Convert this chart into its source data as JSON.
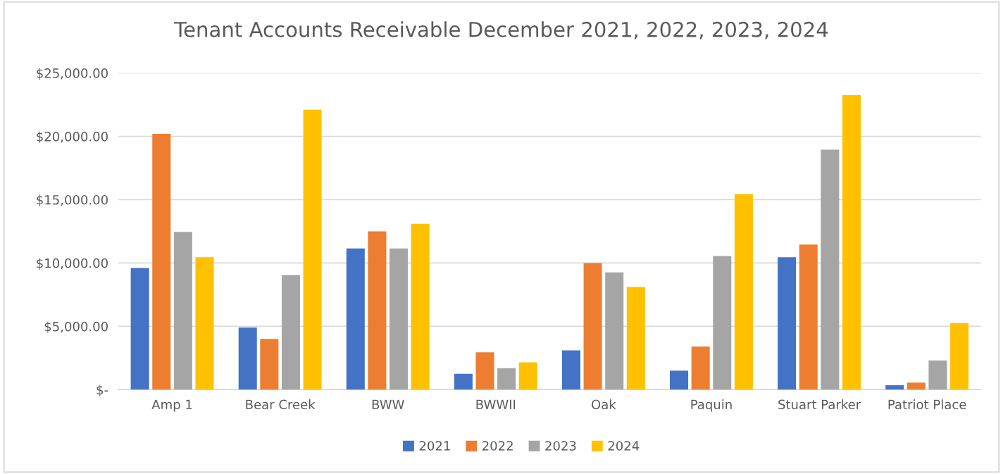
{
  "chart_data": {
    "type": "bar",
    "title": "Tenant Accounts Receivable December 2021, 2022, 2023, 2024",
    "categories": [
      "Amp 1",
      "Bear Creek",
      "BWW",
      "BWWII",
      "Oak",
      "Paquin",
      "Stuart Parker",
      "Patriot Place"
    ],
    "series": [
      {
        "name": "2021",
        "color": "#4472c4",
        "values": [
          9600,
          4900,
          11150,
          1250,
          3100,
          1500,
          10450,
          350
        ]
      },
      {
        "name": "2022",
        "color": "#ed7d31",
        "values": [
          20200,
          4000,
          12500,
          2950,
          10000,
          3400,
          11450,
          550
        ]
      },
      {
        "name": "2023",
        "color": "#a5a5a5",
        "values": [
          12450,
          9050,
          11150,
          1700,
          9250,
          10550,
          18950,
          2300
        ]
      },
      {
        "name": "2024",
        "color": "#ffc000",
        "values": [
          10450,
          22100,
          13100,
          2150,
          8100,
          15450,
          23250,
          5250
        ]
      }
    ],
    "ylim": [
      0,
      25000
    ],
    "yticks": [
      {
        "value": 0,
        "label": "$-"
      },
      {
        "value": 5000,
        "label": "$5,000.00"
      },
      {
        "value": 10000,
        "label": "$10,000.00"
      },
      {
        "value": 15000,
        "label": "$15,000.00"
      },
      {
        "value": 20000,
        "label": "$20,000.00"
      },
      {
        "value": 25000,
        "label": "$25,000.00"
      }
    ],
    "grid": "y",
    "legend": "bottom"
  }
}
